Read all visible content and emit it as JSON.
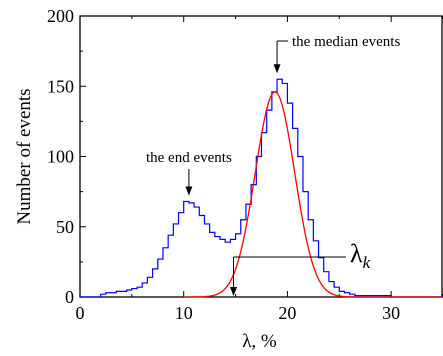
{
  "chart_data": {
    "type": "line",
    "title": "",
    "xlabel": "λ, %",
    "ylabel": "Number of events",
    "xlim": [
      0,
      35
    ],
    "ylim": [
      0,
      200
    ],
    "grid": false,
    "x_ticks": [
      0,
      10,
      20,
      30
    ],
    "y_ticks": [
      0,
      50,
      100,
      150,
      200
    ],
    "x_tick_labels": [
      "0",
      "10",
      "20",
      "30"
    ],
    "y_tick_labels": [
      "0",
      "50",
      "100",
      "150",
      "200"
    ],
    "colors": {
      "histogram": "#0000ff",
      "fit": "#ff0000",
      "text": "#000000"
    },
    "series": [
      {
        "style": "step",
        "color": "#0000ff",
        "x": [
          0,
          0.5,
          1,
          1.5,
          2,
          2.5,
          3,
          3.5,
          4,
          4.5,
          5,
          5.5,
          6,
          6.5,
          7,
          7.5,
          8,
          8.5,
          9,
          9.5,
          10,
          10.5,
          11,
          11.5,
          12,
          12.5,
          13,
          13.5,
          14,
          14.5,
          15,
          15.5,
          16,
          16.5,
          17,
          17.5,
          18,
          18.5,
          19,
          19.5,
          20,
          20.5,
          21,
          21.5,
          22,
          22.5,
          23,
          23.5,
          24,
          24.5,
          25,
          25.5,
          26,
          26.5,
          27,
          27.5,
          28,
          28.5,
          29,
          29.5,
          30,
          30.5,
          31,
          31.5,
          32,
          32.5,
          33,
          33.5,
          34,
          34.5
        ],
        "values": [
          0,
          0,
          0,
          0,
          2,
          3,
          3,
          4,
          4,
          5,
          6,
          7,
          10,
          14,
          20,
          27,
          35,
          44,
          52,
          60,
          68,
          67,
          64,
          58,
          52,
          46,
          43,
          41,
          39,
          41,
          45,
          55,
          66,
          80,
          100,
          117,
          133,
          146,
          155,
          152,
          138,
          120,
          100,
          75,
          55,
          40,
          28,
          18,
          11,
          7,
          4,
          3,
          2,
          1,
          1,
          1,
          1,
          1,
          1,
          1,
          0,
          0,
          0,
          0,
          0,
          0,
          0,
          0,
          0,
          0
        ]
      },
      {
        "style": "gaussian-fit",
        "color": "#ff0000",
        "amplitude": 146,
        "mean": 18.8,
        "sigma": 1.9,
        "x_range": [
          10,
          35
        ]
      }
    ],
    "annotations": [
      {
        "text": "the median events",
        "target_x": 19.0,
        "target_y": 155
      },
      {
        "text": "the end events",
        "target_x": 10.5,
        "target_y": 68
      },
      {
        "text": "λ",
        "subscript": "k",
        "target_x": 14.8,
        "target_y": 0
      }
    ]
  }
}
